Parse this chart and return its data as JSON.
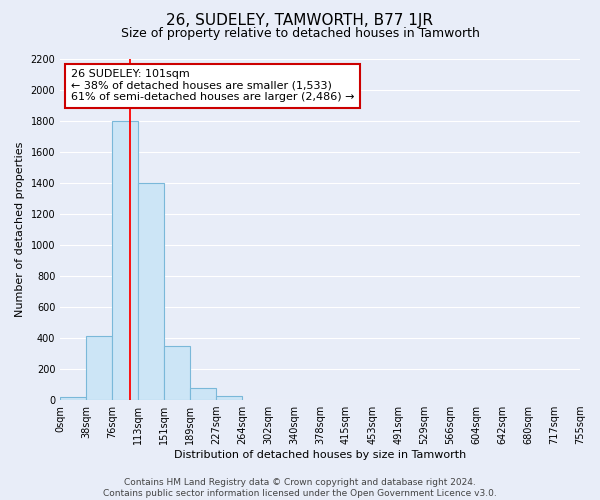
{
  "title": "26, SUDELEY, TAMWORTH, B77 1JR",
  "subtitle": "Size of property relative to detached houses in Tamworth",
  "xlabel": "Distribution of detached houses by size in Tamworth",
  "ylabel": "Number of detached properties",
  "bar_edges": [
    0,
    38,
    76,
    113,
    151,
    189,
    227,
    264,
    302,
    340,
    378,
    415,
    453,
    491,
    529,
    566,
    604,
    642,
    680,
    717,
    755
  ],
  "bar_heights": [
    20,
    415,
    1800,
    1400,
    350,
    75,
    25,
    0,
    0,
    0,
    0,
    0,
    0,
    0,
    0,
    0,
    0,
    0,
    0,
    0
  ],
  "bar_color": "#cce5f6",
  "bar_edge_color": "#7ab8d9",
  "red_line_x": 101,
  "ylim": [
    0,
    2200
  ],
  "yticks": [
    0,
    200,
    400,
    600,
    800,
    1000,
    1200,
    1400,
    1600,
    1800,
    2000,
    2200
  ],
  "tick_labels": [
    "0sqm",
    "38sqm",
    "76sqm",
    "113sqm",
    "151sqm",
    "189sqm",
    "227sqm",
    "264sqm",
    "302sqm",
    "340sqm",
    "378sqm",
    "415sqm",
    "453sqm",
    "491sqm",
    "529sqm",
    "566sqm",
    "604sqm",
    "642sqm",
    "680sqm",
    "717sqm",
    "755sqm"
  ],
  "annotation_title": "26 SUDELEY: 101sqm",
  "annotation_line1": "← 38% of detached houses are smaller (1,533)",
  "annotation_line2": "61% of semi-detached houses are larger (2,486) →",
  "annotation_box_color": "#ffffff",
  "annotation_box_edge_color": "#cc0000",
  "footer_line1": "Contains HM Land Registry data © Crown copyright and database right 2024.",
  "footer_line2": "Contains public sector information licensed under the Open Government Licence v3.0.",
  "plot_bg_color": "#e8edf8",
  "fig_bg_color": "#e8edf8",
  "grid_color": "#ffffff",
  "title_fontsize": 11,
  "subtitle_fontsize": 9,
  "axis_label_fontsize": 8,
  "tick_fontsize": 7,
  "annotation_fontsize": 8,
  "footer_fontsize": 6.5
}
